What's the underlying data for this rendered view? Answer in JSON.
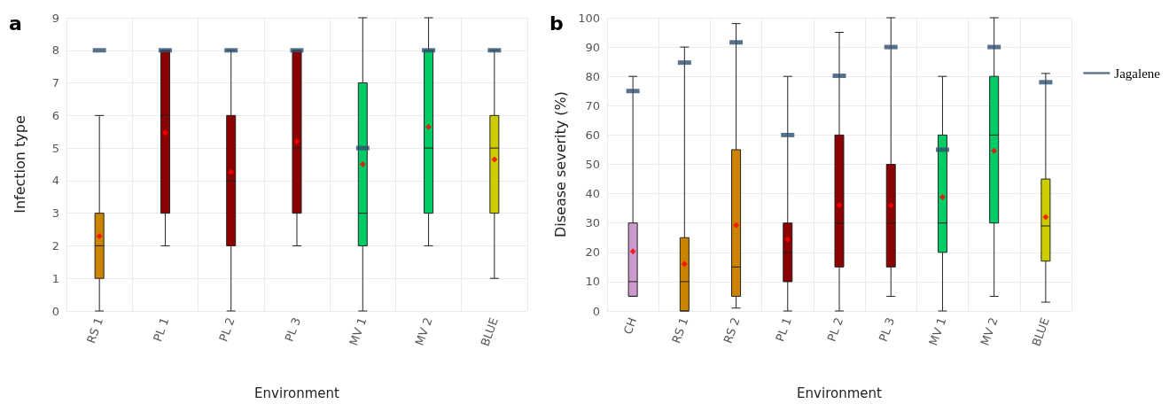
{
  "chart_data": [
    {
      "type": "box",
      "title": "a",
      "xlabel": "Environment",
      "ylabel": "Infection type",
      "categories": [
        "RS 1",
        "PL 1",
        "PL 2",
        "PL 3",
        "MV 1",
        "MV 2",
        "BLUE"
      ],
      "ylim": [
        0,
        9
      ],
      "yticks": [
        0,
        1,
        2,
        3,
        4,
        5,
        6,
        7,
        8,
        9
      ],
      "grid": true,
      "legend": false,
      "colors": [
        "#cc8400",
        "#8b0000",
        "#8b0000",
        "#8b0000",
        "#00cc66",
        "#00cc66",
        "#cccc00"
      ],
      "boxes": [
        {
          "low": 0,
          "q1": 1,
          "median": 2,
          "q3": 3,
          "high": 6
        },
        {
          "low": 2,
          "q1": 3,
          "median": 6,
          "q3": 8,
          "high": 8
        },
        {
          "low": 0,
          "q1": 2,
          "median": 4,
          "q3": 6,
          "high": 8
        },
        {
          "low": 2,
          "q1": 3,
          "median": 5,
          "q3": 8,
          "high": 8
        },
        {
          "low": 0,
          "q1": 2,
          "median": 3,
          "q3": 7,
          "high": 9
        },
        {
          "low": 2,
          "q1": 3,
          "median": 5,
          "q3": 8,
          "high": 9
        },
        {
          "low": 1,
          "q1": 3,
          "median": 5,
          "q3": 6,
          "high": 8
        }
      ],
      "series": [
        {
          "type": "scatter",
          "color": "#ff0000",
          "marker": "diamond",
          "x": [
            "RS 1",
            "PL 1",
            "PL 2",
            "PL 3",
            "MV 1",
            "MV 2",
            "BLUE"
          ],
          "values": [
            2.3,
            5.47,
            4.27,
            5.2,
            4.5,
            5.65,
            4.65
          ]
        },
        {
          "type": "scatter",
          "color": "#2f4f6f",
          "marker": "square",
          "x": [
            "RS 1",
            "PL 1",
            "PL 2",
            "PL 3",
            "MV 1",
            "MV 2",
            "BLUE"
          ],
          "values": [
            8,
            8,
            8,
            8,
            5,
            8,
            8
          ]
        }
      ]
    },
    {
      "type": "box",
      "title": "b",
      "xlabel": "Environment",
      "ylabel": "Disease severity (%)",
      "categories": [
        "CH",
        "RS 1",
        "RS 2",
        "PL 1",
        "PL 2",
        "PL 3",
        "MV 1",
        "MV 2",
        "BLUE"
      ],
      "ylim": [
        0,
        100
      ],
      "yticks": [
        0,
        10,
        20,
        30,
        40,
        50,
        60,
        70,
        80,
        90,
        100
      ],
      "grid": true,
      "legend": "right",
      "colors": [
        "#cc99cc",
        "#cc8400",
        "#cc8400",
        "#8b0000",
        "#8b0000",
        "#8b0000",
        "#00cc66",
        "#00cc66",
        "#cccc00"
      ],
      "boxes": [
        {
          "low": 5,
          "q1": 5,
          "median": 10,
          "q3": 30,
          "high": 80
        },
        {
          "low": 0,
          "q1": 0,
          "median": 10,
          "q3": 25,
          "high": 90
        },
        {
          "low": 1,
          "q1": 5,
          "median": 15,
          "q3": 55,
          "high": 98
        },
        {
          "low": 0,
          "q1": 10,
          "median": 20,
          "q3": 30,
          "high": 80
        },
        {
          "low": 0,
          "q1": 15,
          "median": 30,
          "q3": 60,
          "high": 95
        },
        {
          "low": 5,
          "q1": 15,
          "median": 30,
          "q3": 50,
          "high": 100
        },
        {
          "low": 0,
          "q1": 20,
          "median": 30,
          "q3": 60,
          "high": 80
        },
        {
          "low": 5,
          "q1": 30,
          "median": 60,
          "q3": 80,
          "high": 100
        },
        {
          "low": 3,
          "q1": 17,
          "median": 29,
          "q3": 45,
          "high": 81
        }
      ],
      "series": [
        {
          "type": "scatter",
          "color": "#ff0000",
          "marker": "diamond",
          "x": [
            "CH",
            "RS 1",
            "RS 2",
            "PL 1",
            "PL 2",
            "PL 3",
            "MV 1",
            "MV 2",
            "BLUE"
          ],
          "values": [
            20.3,
            16,
            29.2,
            24.4,
            36.1,
            36,
            38.8,
            54.6,
            32
          ]
        },
        {
          "type": "scatter",
          "name": "Jagalene",
          "color": "#2f4f6f",
          "marker": "square",
          "x": [
            "CH",
            "RS 1",
            "RS 2",
            "PL 1",
            "PL 2",
            "PL 3",
            "MV 1",
            "MV 2",
            "BLUE"
          ],
          "values": [
            75,
            84.7,
            91.6,
            60,
            80.2,
            90,
            55,
            90,
            78
          ]
        }
      ]
    }
  ]
}
